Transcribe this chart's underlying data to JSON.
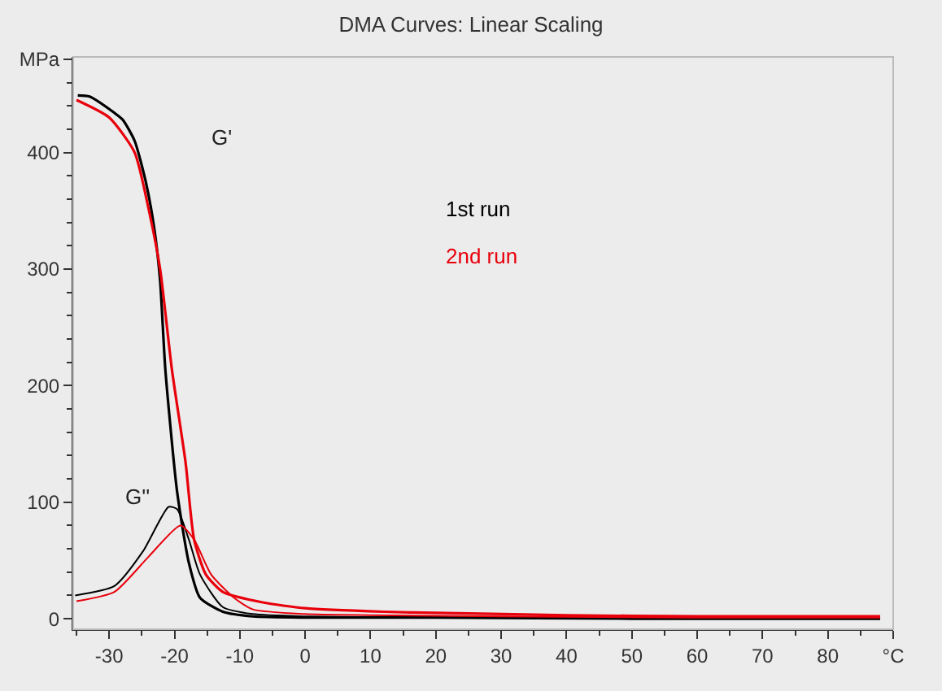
{
  "chart_data": {
    "type": "line",
    "title": "DMA Curves: Linear Scaling",
    "legend": false,
    "grid": false,
    "marker": "none",
    "line_style": "solid",
    "xlim": [
      -35.5,
      90
    ],
    "ylim": [
      -9,
      482
    ],
    "xticks": [
      -30,
      -20,
      -10,
      0,
      10,
      20,
      30,
      40,
      50,
      60,
      70,
      80,
      {
        "value": 90,
        "label": "°C"
      }
    ],
    "yticks": [
      0,
      100,
      200,
      300,
      400,
      {
        "value": 480,
        "label": "MPa"
      }
    ],
    "series": [
      {
        "name": "1st run",
        "color": "#000000",
        "x": [
          -34.8,
          -33,
          -29.2,
          -27.9,
          -26.1,
          -24.4,
          -23.1,
          -22.2,
          -21.4,
          -19.6,
          -17.8,
          -16.1,
          -12.6,
          -8,
          0,
          20,
          50,
          88
        ],
        "values": [
          449,
          448,
          434,
          428,
          410,
          375,
          335,
          290,
          214,
          109,
          48,
          18,
          6,
          2,
          1,
          1,
          0,
          0
        ]
      },
      {
        "name": "2nd run",
        "color": "#e8000b",
        "x": [
          -35,
          -30,
          -26.1,
          -23.9,
          -22.2,
          -20.4,
          -18.3,
          -17,
          -15.2,
          -12.6,
          -6.5,
          0,
          12,
          20,
          40,
          60,
          88
        ],
        "values": [
          445,
          430,
          400,
          350,
          300,
          214,
          134,
          68,
          38,
          23,
          14,
          9,
          6,
          5,
          3,
          2,
          2
        ]
      },
      {
        "color": "#000000",
        "x": [
          -35.2,
          -29.2,
          -24.8,
          -20.9,
          -19.6,
          -17.8,
          -16.1,
          -12.6,
          -8,
          0,
          20,
          88
        ],
        "values": [
          20,
          28,
          58,
          96,
          94,
          68,
          38,
          10,
          4,
          2,
          1,
          0
        ]
      },
      {
        "color": "#e8000b",
        "x": [
          -35,
          -29.2,
          -24,
          -19.1,
          -17,
          -14.4,
          -10.9,
          -8,
          0,
          10,
          30,
          60,
          88
        ],
        "values": [
          15,
          23,
          53,
          80,
          68,
          38,
          18,
          8,
          4,
          3,
          2,
          1,
          1
        ]
      }
    ],
    "annotations": [
      "G'",
      "G''"
    ]
  }
}
